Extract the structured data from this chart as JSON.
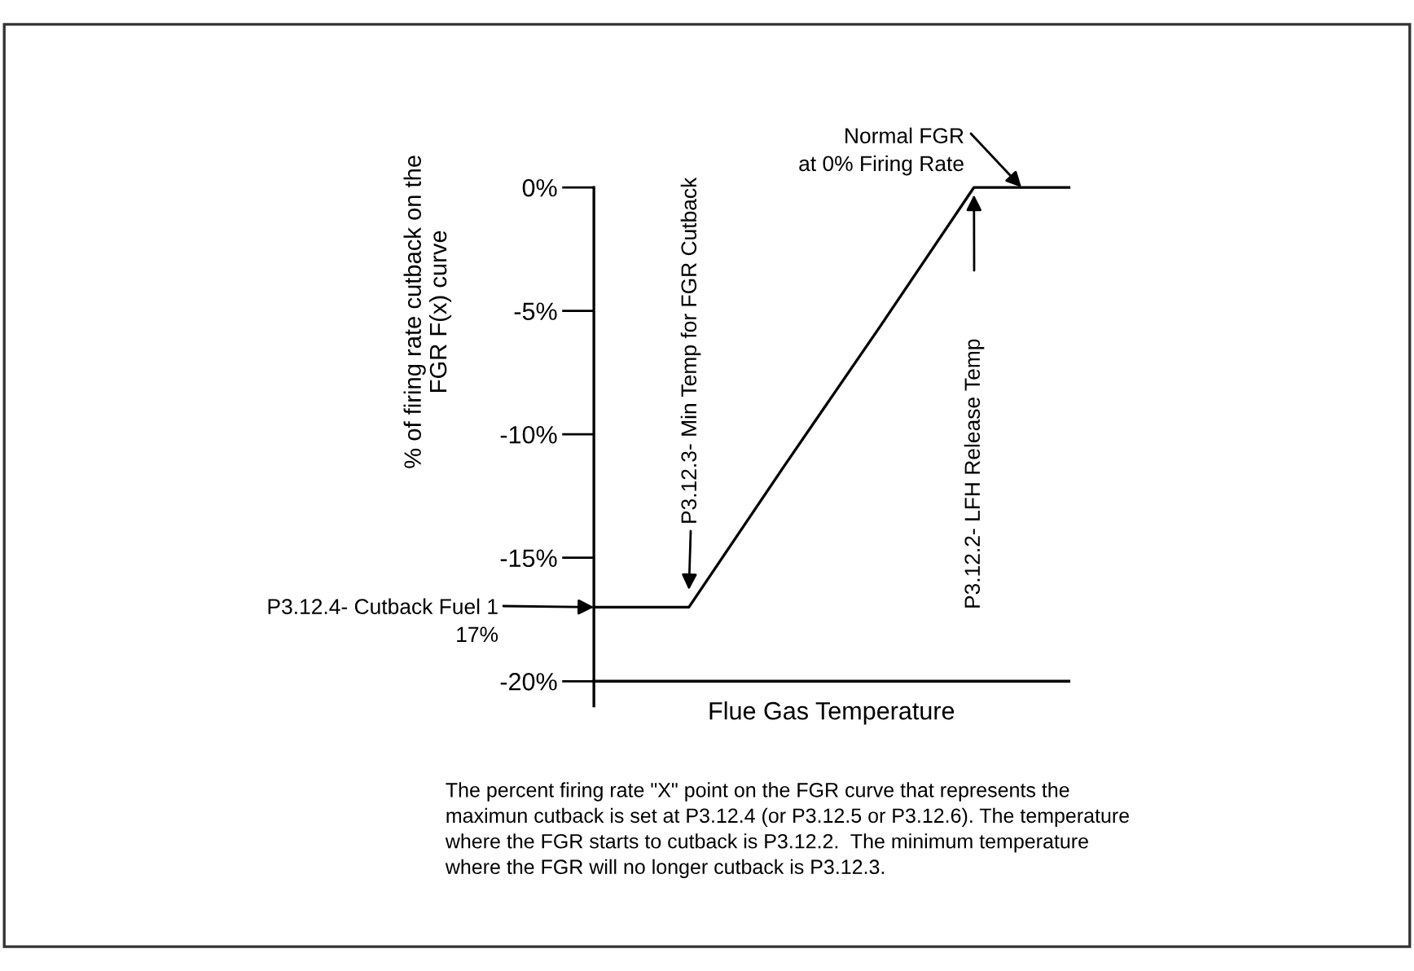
{
  "chart_data": {
    "type": "line",
    "xlabel": "Flue Gas Temperature",
    "ylabel": "% of firing rate cutback on the\nFGR F(x) curve",
    "categories": [
      null,
      null,
      null,
      null,
      null,
      null
    ],
    "series": [
      {
        "color": "#000000",
        "values": [
          -17,
          -17,
          -11.3,
          -5.7,
          0,
          0
        ]
      }
    ],
    "ylim": [
      -21,
      0
    ],
    "yticks": [
      {
        "value": 0,
        "label": "0%"
      },
      {
        "value": -5,
        "label": "-5%"
      },
      {
        "value": -10,
        "label": "-10%"
      },
      {
        "value": -15,
        "label": "-15%"
      },
      {
        "value": -20,
        "label": "-20%"
      }
    ],
    "tick_labels": "y",
    "grid": false,
    "legend": false,
    "ref_lines": [
      {
        "axis": "y",
        "value": -20,
        "color": "#000000"
      }
    ],
    "annotations": [
      "Normal FGR\nat 0% Firing Rate",
      "P3.12.3- Min Temp for FGR Cutback",
      "P3.12.2- LFH Release Temp",
      "P3.12.4- Cutback Fuel 1\n17%",
      "The percent firing rate \"X\" point on the FGR curve that represents the\nmaximun cutback is set at P3.12.4 (or P3.12.5 or P3.12.6). The temperature\nwhere the FGR starts to cutback is P3.12.2.  The minimum temperature\nwhere the FGR will no longer cutback is P3.12.3."
    ]
  }
}
